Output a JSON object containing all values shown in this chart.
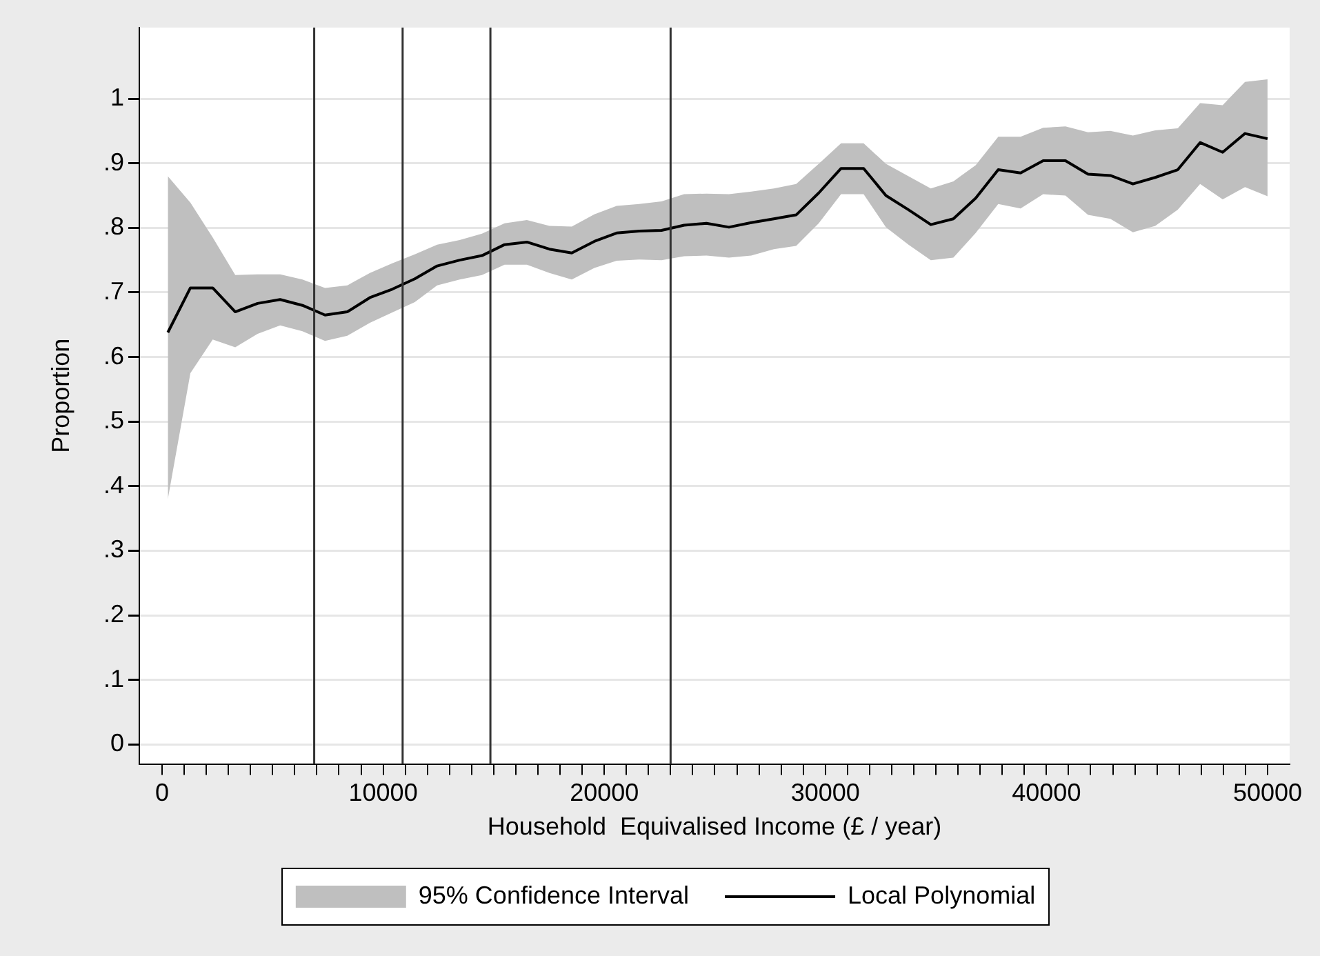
{
  "chart_data": {
    "type": "line",
    "xlabel": "Household  Equivalised Income (£ / year)",
    "ylabel": "Proportion",
    "x": [
      260,
      1280,
      2290,
      3310,
      4320,
      5340,
      6350,
      7370,
      8380,
      9400,
      10410,
      11430,
      12440,
      13460,
      14470,
      15490,
      16500,
      17520,
      18530,
      19550,
      20560,
      21580,
      22590,
      23610,
      24620,
      25640,
      26650,
      27670,
      28680,
      29700,
      30710,
      31730,
      32740,
      33760,
      34770,
      35790,
      36800,
      37820,
      38830,
      39850,
      40860,
      41880,
      42890,
      43910,
      44920,
      45940,
      46950,
      47970,
      48980,
      50000
    ],
    "series": [
      {
        "name": "95% Confidence Interval",
        "type": "area",
        "color": "#bfbfbf",
        "values": [
          null,
          null,
          null,
          null,
          null,
          null,
          null,
          null,
          null,
          null,
          null,
          null,
          null,
          null,
          null,
          null,
          null,
          null,
          null,
          null,
          null,
          null,
          null,
          null,
          null,
          null,
          null,
          null,
          null,
          null,
          null,
          null,
          null,
          null,
          null,
          null,
          null,
          null,
          null,
          null,
          null,
          null,
          null,
          null,
          null,
          null,
          null,
          null,
          null,
          null
        ],
        "lower": [
          0.38,
          0.575,
          0.627,
          0.615,
          0.636,
          0.649,
          0.64,
          0.625,
          0.633,
          0.653,
          0.669,
          0.685,
          0.711,
          0.72,
          0.727,
          0.743,
          0.743,
          0.73,
          0.72,
          0.738,
          0.749,
          0.751,
          0.75,
          0.756,
          0.757,
          0.754,
          0.757,
          0.767,
          0.772,
          0.807,
          0.852,
          0.852,
          0.801,
          0.774,
          0.75,
          0.754,
          0.792,
          0.837,
          0.83,
          0.852,
          0.85,
          0.82,
          0.814,
          0.793,
          0.803,
          0.828,
          0.868,
          0.844,
          0.863,
          0.849
        ],
        "upper": [
          0.88,
          0.839,
          0.785,
          0.727,
          0.728,
          0.728,
          0.72,
          0.707,
          0.711,
          0.73,
          0.745,
          0.759,
          0.774,
          0.781,
          0.791,
          0.807,
          0.812,
          0.803,
          0.802,
          0.821,
          0.834,
          0.837,
          0.841,
          0.852,
          0.853,
          0.852,
          0.856,
          0.861,
          0.868,
          0.899,
          0.931,
          0.931,
          0.899,
          0.88,
          0.861,
          0.872,
          0.897,
          0.941,
          0.941,
          0.955,
          0.957,
          0.948,
          0.95,
          0.943,
          0.951,
          0.954,
          0.993,
          0.99,
          1.026,
          1.03
        ]
      },
      {
        "name": "Local Polynomial",
        "type": "line",
        "color": "#000000",
        "values": [
          0.638,
          0.707,
          0.707,
          0.67,
          0.683,
          0.689,
          0.68,
          0.665,
          0.67,
          0.692,
          0.705,
          0.721,
          0.741,
          0.75,
          0.757,
          0.774,
          0.778,
          0.767,
          0.761,
          0.779,
          0.792,
          0.795,
          0.796,
          0.804,
          0.807,
          0.801,
          0.808,
          0.814,
          0.82,
          0.854,
          0.892,
          0.892,
          0.85,
          0.828,
          0.805,
          0.814,
          0.846,
          0.89,
          0.885,
          0.904,
          0.904,
          0.883,
          0.881,
          0.868,
          0.878,
          0.89,
          0.932,
          0.917,
          0.946,
          0.938
        ]
      }
    ],
    "xlim": [
      -1030,
      51000
    ],
    "xticks": [
      0,
      {
        "value": 1000,
        "label": null
      },
      {
        "value": 2000,
        "label": null
      },
      {
        "value": 3000,
        "label": null
      },
      {
        "value": 4000,
        "label": null
      },
      {
        "value": 5000,
        "label": null
      },
      {
        "value": 6000,
        "label": null
      },
      {
        "value": 7000,
        "label": null
      },
      {
        "value": 8000,
        "label": null
      },
      {
        "value": 9000,
        "label": null
      },
      10000,
      {
        "value": 11000,
        "label": null
      },
      {
        "value": 12000,
        "label": null
      },
      {
        "value": 13000,
        "label": null
      },
      {
        "value": 14000,
        "label": null
      },
      {
        "value": 15000,
        "label": null
      },
      {
        "value": 16000,
        "label": null
      },
      {
        "value": 17000,
        "label": null
      },
      {
        "value": 18000,
        "label": null
      },
      {
        "value": 19000,
        "label": null
      },
      20000,
      {
        "value": 21000,
        "label": null
      },
      {
        "value": 22000,
        "label": null
      },
      {
        "value": 23000,
        "label": null
      },
      {
        "value": 24000,
        "label": null
      },
      {
        "value": 25000,
        "label": null
      },
      {
        "value": 26000,
        "label": null
      },
      {
        "value": 27000,
        "label": null
      },
      {
        "value": 28000,
        "label": null
      },
      {
        "value": 29000,
        "label": null
      },
      30000,
      {
        "value": 31000,
        "label": null
      },
      {
        "value": 32000,
        "label": null
      },
      {
        "value": 33000,
        "label": null
      },
      {
        "value": 34000,
        "label": null
      },
      {
        "value": 35000,
        "label": null
      },
      {
        "value": 36000,
        "label": null
      },
      {
        "value": 37000,
        "label": null
      },
      {
        "value": 38000,
        "label": null
      },
      {
        "value": 39000,
        "label": null
      },
      40000,
      {
        "value": 41000,
        "label": null
      },
      {
        "value": 42000,
        "label": null
      },
      {
        "value": 43000,
        "label": null
      },
      {
        "value": 44000,
        "label": null
      },
      {
        "value": 45000,
        "label": null
      },
      {
        "value": 46000,
        "label": null
      },
      {
        "value": 47000,
        "label": null
      },
      {
        "value": 48000,
        "label": null
      },
      {
        "value": 49000,
        "label": null
      },
      50000
    ],
    "ylim": [
      -0.03,
      1.11
    ],
    "yticks": [
      0,
      {
        "value": 0.1,
        "label": ".1"
      },
      {
        "value": 0.2,
        "label": ".2"
      },
      {
        "value": 0.3,
        "label": ".3"
      },
      {
        "value": 0.4,
        "label": ".4"
      },
      {
        "value": 0.5,
        "label": ".5"
      },
      {
        "value": 0.6,
        "label": ".6"
      },
      {
        "value": 0.7,
        "label": ".7"
      },
      {
        "value": 0.8,
        "label": ".8"
      },
      {
        "value": 0.9,
        "label": ".9"
      },
      1
    ],
    "ref_lines": [
      {
        "axis": "x",
        "value": 6880,
        "color": "#333333"
      },
      {
        "axis": "x",
        "value": 10880,
        "color": "#333333"
      },
      {
        "axis": "x",
        "value": 14850,
        "color": "#333333"
      },
      {
        "axis": "x",
        "value": 23000,
        "color": "#333333"
      }
    ],
    "grid": "y",
    "legend": "bottom",
    "marker": "none",
    "line_style": "solid"
  }
}
